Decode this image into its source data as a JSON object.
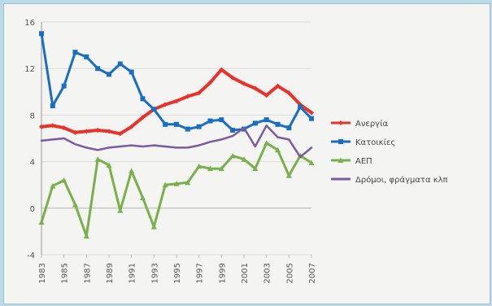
{
  "chart_data": {
    "type": "line",
    "title": "",
    "xlabel": "",
    "ylabel": "",
    "ylim": [
      -4,
      16
    ],
    "yticks": [
      -4,
      0,
      4,
      8,
      12,
      16
    ],
    "x": [
      1983,
      1984,
      1985,
      1986,
      1987,
      1988,
      1989,
      1990,
      1991,
      1992,
      1993,
      1994,
      1995,
      1996,
      1997,
      1998,
      1999,
      2000,
      2001,
      2002,
      2003,
      2004,
      2005,
      2006,
      2007
    ],
    "xtick_labels": [
      "1983",
      "1985",
      "1987",
      "1989",
      "1991",
      "1993",
      "1995",
      "1997",
      "1999",
      "2001",
      "2003",
      "2005",
      "2007"
    ],
    "legend_position": "right",
    "series": [
      {
        "name": "Ανεργία",
        "color": "#e8332a",
        "marker": "diamond",
        "values": [
          7.0,
          7.1,
          6.9,
          6.5,
          6.6,
          6.7,
          6.6,
          6.4,
          7.0,
          7.8,
          8.5,
          8.9,
          9.2,
          9.6,
          9.9,
          10.8,
          11.9,
          11.2,
          10.7,
          10.3,
          9.7,
          10.5,
          9.9,
          8.9,
          8.2
        ]
      },
      {
        "name": "Κατοικίες",
        "color": "#1a6ec2",
        "marker": "square",
        "values": [
          15.0,
          8.8,
          10.5,
          13.4,
          13.0,
          12.0,
          11.5,
          12.4,
          11.7,
          9.4,
          8.5,
          7.2,
          7.2,
          6.8,
          7.0,
          7.5,
          7.6,
          6.7,
          6.8,
          7.3,
          7.6,
          7.2,
          6.9,
          8.7,
          7.7
        ]
      },
      {
        "name": "ΑΕΠ",
        "color": "#78b04a",
        "marker": "triangle",
        "values": [
          -1.2,
          1.9,
          2.4,
          0.3,
          -2.4,
          4.2,
          3.7,
          -0.2,
          3.2,
          0.9,
          -1.6,
          2.0,
          2.1,
          2.2,
          3.6,
          3.4,
          3.4,
          4.5,
          4.2,
          3.4,
          5.6,
          5.0,
          2.8,
          4.5,
          3.9
        ]
      },
      {
        "name": "Δρόμοι, φράγματα κλπ",
        "color": "#7a5aa0",
        "marker": "none",
        "values": [
          5.8,
          5.9,
          6.0,
          5.5,
          5.2,
          5.0,
          5.2,
          5.3,
          5.4,
          5.3,
          5.4,
          5.3,
          5.2,
          5.2,
          5.4,
          5.7,
          5.9,
          6.2,
          6.9,
          5.3,
          7.1,
          6.1,
          5.9,
          4.4,
          5.2
        ]
      }
    ]
  }
}
